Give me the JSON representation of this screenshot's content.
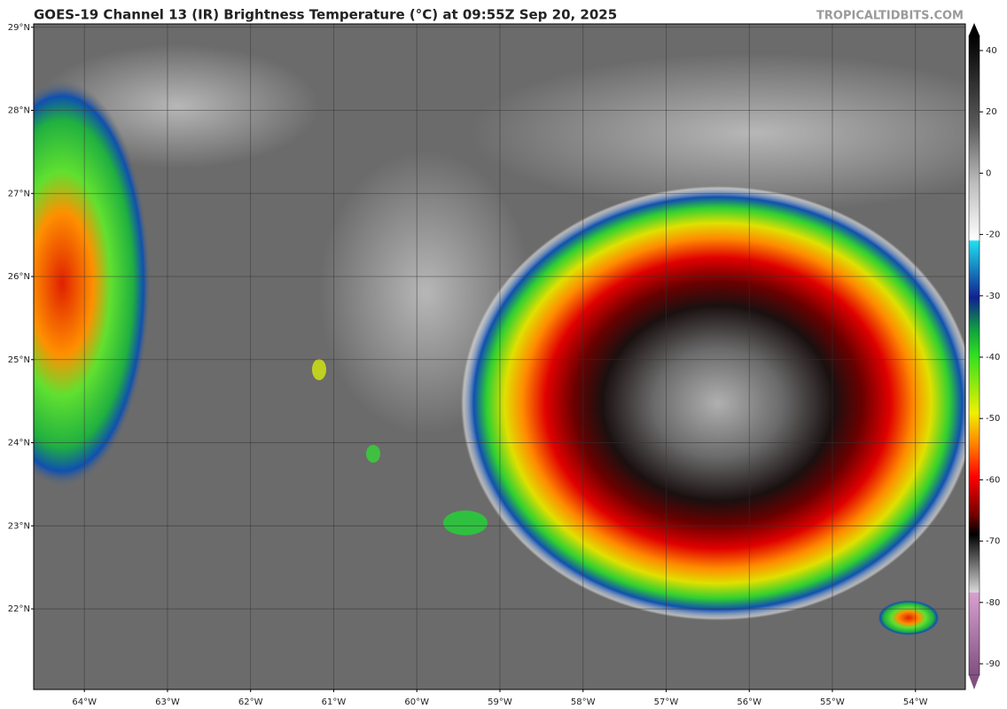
{
  "title": "GOES-19 Channel 13 (IR) Brightness Temperature (°C) at 09:55Z Sep 20, 2025",
  "credit": "TROPICALTIDBITS.COM",
  "map": {
    "xlim": [
      -64.61,
      -53.4
    ],
    "ylim": [
      21.03,
      29.04
    ],
    "lat_ticks": [
      {
        "value": 29,
        "label": "29°N"
      },
      {
        "value": 28,
        "label": "28°N"
      },
      {
        "value": 27,
        "label": "27°N"
      },
      {
        "value": 26,
        "label": "26°N"
      },
      {
        "value": 25,
        "label": "25°N"
      },
      {
        "value": 24,
        "label": "24°N"
      },
      {
        "value": 23,
        "label": "23°N"
      },
      {
        "value": 22,
        "label": "22°N"
      }
    ],
    "lon_ticks": [
      {
        "value": -64,
        "label": "64°W"
      },
      {
        "value": -63,
        "label": "63°W"
      },
      {
        "value": -62,
        "label": "62°W"
      },
      {
        "value": -61,
        "label": "61°W"
      },
      {
        "value": -60,
        "label": "60°W"
      },
      {
        "value": -59,
        "label": "59°W"
      },
      {
        "value": -58,
        "label": "58°W"
      },
      {
        "value": -57,
        "label": "57°W"
      },
      {
        "value": -56,
        "label": "56°W"
      },
      {
        "value": -55,
        "label": "55°W"
      },
      {
        "value": -54,
        "label": "54°W"
      }
    ]
  },
  "colorbar": {
    "ticks": [
      40,
      20,
      0,
      -20,
      -30,
      -40,
      -50,
      -60,
      -70,
      -80,
      -90
    ]
  }
}
